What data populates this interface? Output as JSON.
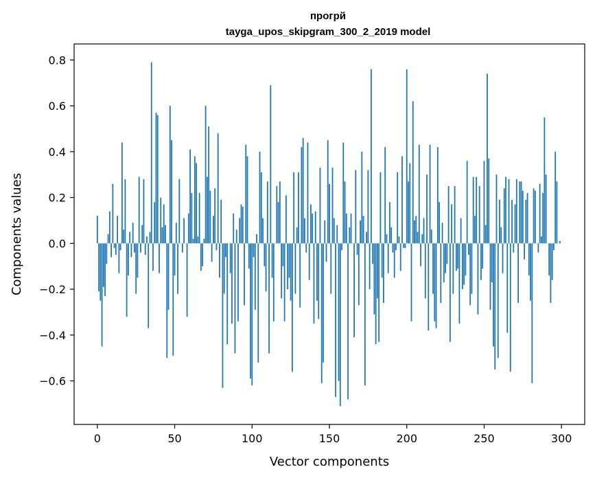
{
  "chart_data": {
    "type": "bar",
    "title": "прогрй",
    "subtitle": "tayga_upos_skipgram_300_2_2019 model",
    "xlabel": "Vector components",
    "ylabel": "Components values",
    "xlim": [
      -15,
      315
    ],
    "ylim": [
      -0.79,
      0.87
    ],
    "xticks": [
      0,
      50,
      100,
      150,
      200,
      250,
      300
    ],
    "yticks": [
      -0.6,
      -0.4,
      -0.2,
      0.0,
      0.2,
      0.4,
      0.6,
      0.8
    ],
    "ytick_labels": [
      "−0.6",
      "−0.4",
      "−0.2",
      "0.0",
      "0.2",
      "0.4",
      "0.6",
      "0.8"
    ],
    "bar_color": "#1f77b4",
    "grid": false,
    "values": [
      0.12,
      -0.21,
      -0.25,
      -0.45,
      -0.19,
      -0.23,
      -0.09,
      0.04,
      0.14,
      -0.06,
      0.26,
      -0.02,
      -0.05,
      0.12,
      -0.13,
      -0.03,
      0.44,
      0.06,
      0.28,
      -0.32,
      -0.14,
      0.05,
      -0.06,
      0.09,
      -0.04,
      -0.22,
      -0.15,
      0.29,
      -0.04,
      0.08,
      0.28,
      -0.05,
      0.03,
      -0.37,
      0.05,
      0.79,
      -0.12,
      0.18,
      0.57,
      0.56,
      -0.13,
      0.2,
      0.07,
      0.17,
      0.08,
      -0.5,
      -0.29,
      0.6,
      0.45,
      -0.49,
      -0.14,
      0.09,
      -0.22,
      0.28,
      0.0,
      -0.04,
      0.11,
      0.0,
      -0.32,
      0.13,
      0.41,
      0.22,
      0.02,
      0.38,
      0.35,
      0.03,
      0.22,
      -0.12,
      -0.1,
      0.02,
      0.6,
      0.29,
      0.51,
      0.23,
      -0.08,
      0.12,
      0.24,
      -0.03,
      0.48,
      -0.15,
      0.19,
      -0.63,
      -0.22,
      -0.06,
      -0.44,
      0.0,
      -0.13,
      -0.35,
      0.13,
      -0.48,
      0.06,
      -0.34,
      0.11,
      0.17,
      0.16,
      -0.27,
      0.43,
      0.38,
      -0.11,
      -0.59,
      -0.62,
      -0.06,
      -0.29,
      0.04,
      -0.52,
      0.4,
      0.31,
      0.11,
      -0.1,
      -0.21,
      0.27,
      -0.48,
      0.69,
      -0.15,
      -0.34,
      0.0,
      0.25,
      0.18,
      0.27,
      -0.24,
      -0.1,
      -0.34,
      0.21,
      -0.2,
      -0.15,
      -0.25,
      -0.56,
      0.31,
      -0.22,
      0.07,
      0.31,
      -0.28,
      0.42,
      0.46,
      0.11,
      -0.04,
      0.44,
      -0.16,
      0.17,
      0.13,
      -0.35,
      0.14,
      -0.25,
      -0.33,
      0.33,
      -0.61,
      -0.52,
      0.1,
      -0.08,
      0.45,
      0.26,
      -0.22,
      0.33,
      0.11,
      -0.67,
      0.08,
      -0.6,
      -0.71,
      -0.03,
      0.44,
      0.27,
      0.13,
      -0.68,
      0.07,
      0.13,
      0.0,
      -0.41,
      0.32,
      -0.05,
      -0.27,
      0.1,
      0.4,
      0.12,
      -0.62,
      0.05,
      0.32,
      -0.2,
      0.76,
      -0.09,
      -0.31,
      -0.44,
      -0.24,
      -0.43,
      0.31,
      -0.15,
      -0.26,
      0.42,
      0.04,
      -0.13,
      0.18,
      0.07,
      -0.04,
      -0.15,
      -0.03,
      0.31,
      0.03,
      -0.12,
      0.38,
      -0.02,
      -0.02,
      0.76,
      0.27,
      0.35,
      -0.34,
      0.62,
      0.1,
      0.12,
      0.05,
      0.43,
      -0.1,
      0.04,
      0.11,
      -0.24,
      0.3,
      -0.38,
      0.43,
      0.06,
      -0.22,
      -0.34,
      -0.37,
      0.42,
      0.18,
      -0.26,
      0.09,
      -0.17,
      -0.13,
      -0.09,
      0.25,
      -0.43,
      0.17,
      -0.22,
      0.25,
      -0.12,
      -0.11,
      -0.35,
      0.11,
      -0.2,
      -0.18,
      -0.14,
      0.36,
      -0.05,
      -0.27,
      -0.22,
      0.29,
      0.12,
      0.29,
      -0.31,
      0.25,
      -0.16,
      -0.11,
      0.36,
      0.08,
      0.74,
      0.37,
      -0.29,
      -0.17,
      -0.45,
      -0.55,
      0.3,
      -0.5,
      0.19,
      0.07,
      -0.13,
      0.24,
      0.29,
      -0.39,
      0.28,
      -0.56,
      0.19,
      -0.04,
      0.17,
      0.28,
      -0.26,
      0.27,
      0.27,
      0.23,
      -0.07,
      0.19,
      0.22,
      -0.14,
      -0.25,
      -0.61,
      0.24,
      0.23,
      0.0,
      -0.04,
      0.26,
      0.03,
      0.22,
      0.55,
      0.3,
      0.0,
      -0.14,
      -0.26,
      -0.16,
      -0.03,
      0.4,
      0.27,
      0.0,
      0.01
    ]
  }
}
